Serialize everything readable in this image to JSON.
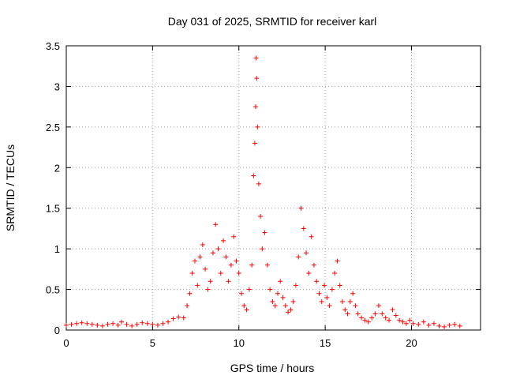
{
  "chart_data": {
    "type": "scatter",
    "title": "Day 031 of 2025, SRMTID for receiver karl",
    "xlabel": "GPS time / hours",
    "ylabel": "SRMTID / TECUs",
    "xlim": [
      0,
      24
    ],
    "ylim": [
      0,
      3.5
    ],
    "xticks": [
      0,
      5,
      10,
      15,
      20
    ],
    "yticks": [
      0,
      0.5,
      1,
      1.5,
      2,
      2.5,
      3,
      3.5
    ],
    "xtick_labels": [
      "0",
      "5",
      "10",
      "15",
      "20"
    ],
    "ytick_labels": [
      "0",
      "0.5",
      "1",
      "1.5",
      "2",
      "2.5",
      "3",
      "3.5"
    ],
    "grid": true,
    "marker": "+",
    "color": "#ff0000",
    "series": [
      {
        "name": "SRMTID",
        "x": [
          0.0,
          0.3,
          0.6,
          0.9,
          1.2,
          1.5,
          1.8,
          2.1,
          2.4,
          2.7,
          3.0,
          3.2,
          3.5,
          3.8,
          4.1,
          4.4,
          4.7,
          5.0,
          5.3,
          5.6,
          5.9,
          6.2,
          6.5,
          6.8,
          7.0,
          7.15,
          7.3,
          7.45,
          7.6,
          7.75,
          7.9,
          8.05,
          8.2,
          8.35,
          8.5,
          8.65,
          8.8,
          8.95,
          9.1,
          9.25,
          9.4,
          9.55,
          9.7,
          9.85,
          10.0,
          10.15,
          10.3,
          10.45,
          10.6,
          10.75,
          10.85,
          10.92,
          10.97,
          11.0,
          11.03,
          11.08,
          11.15,
          11.25,
          11.35,
          11.5,
          11.65,
          11.8,
          11.95,
          12.1,
          12.25,
          12.4,
          12.55,
          12.7,
          12.85,
          13.0,
          13.15,
          13.3,
          13.45,
          13.6,
          13.75,
          13.9,
          14.05,
          14.2,
          14.35,
          14.5,
          14.65,
          14.8,
          14.95,
          15.1,
          15.25,
          15.4,
          15.55,
          15.7,
          15.85,
          16.0,
          16.15,
          16.3,
          16.45,
          16.6,
          16.75,
          16.9,
          17.1,
          17.3,
          17.5,
          17.7,
          17.9,
          18.1,
          18.3,
          18.5,
          18.7,
          18.9,
          19.1,
          19.3,
          19.5,
          19.7,
          19.9,
          20.1,
          20.4,
          20.7,
          21.0,
          21.3,
          21.6,
          21.9,
          22.2,
          22.5,
          22.8
        ],
        "y": [
          0.06,
          0.07,
          0.08,
          0.09,
          0.08,
          0.07,
          0.06,
          0.05,
          0.07,
          0.08,
          0.06,
          0.1,
          0.07,
          0.05,
          0.07,
          0.09,
          0.08,
          0.07,
          0.06,
          0.08,
          0.1,
          0.14,
          0.16,
          0.15,
          0.3,
          0.45,
          0.7,
          0.85,
          0.55,
          0.9,
          1.05,
          0.75,
          0.5,
          0.6,
          0.95,
          1.3,
          1.0,
          0.7,
          1.1,
          0.9,
          0.6,
          0.8,
          1.15,
          0.85,
          0.7,
          0.45,
          0.3,
          0.25,
          0.5,
          0.8,
          1.9,
          2.3,
          2.75,
          3.35,
          3.1,
          2.5,
          1.8,
          1.4,
          1.0,
          1.2,
          0.8,
          0.5,
          0.35,
          0.3,
          0.45,
          0.6,
          0.4,
          0.3,
          0.22,
          0.25,
          0.35,
          0.55,
          0.9,
          1.5,
          1.25,
          0.95,
          0.7,
          1.15,
          0.8,
          0.6,
          0.45,
          0.35,
          0.55,
          0.4,
          0.3,
          0.5,
          0.7,
          0.85,
          0.55,
          0.35,
          0.25,
          0.2,
          0.35,
          0.45,
          0.3,
          0.2,
          0.15,
          0.12,
          0.1,
          0.15,
          0.2,
          0.3,
          0.2,
          0.15,
          0.12,
          0.25,
          0.18,
          0.12,
          0.1,
          0.08,
          0.12,
          0.08,
          0.07,
          0.1,
          0.06,
          0.08,
          0.05,
          0.04,
          0.06,
          0.07,
          0.05
        ]
      }
    ]
  }
}
